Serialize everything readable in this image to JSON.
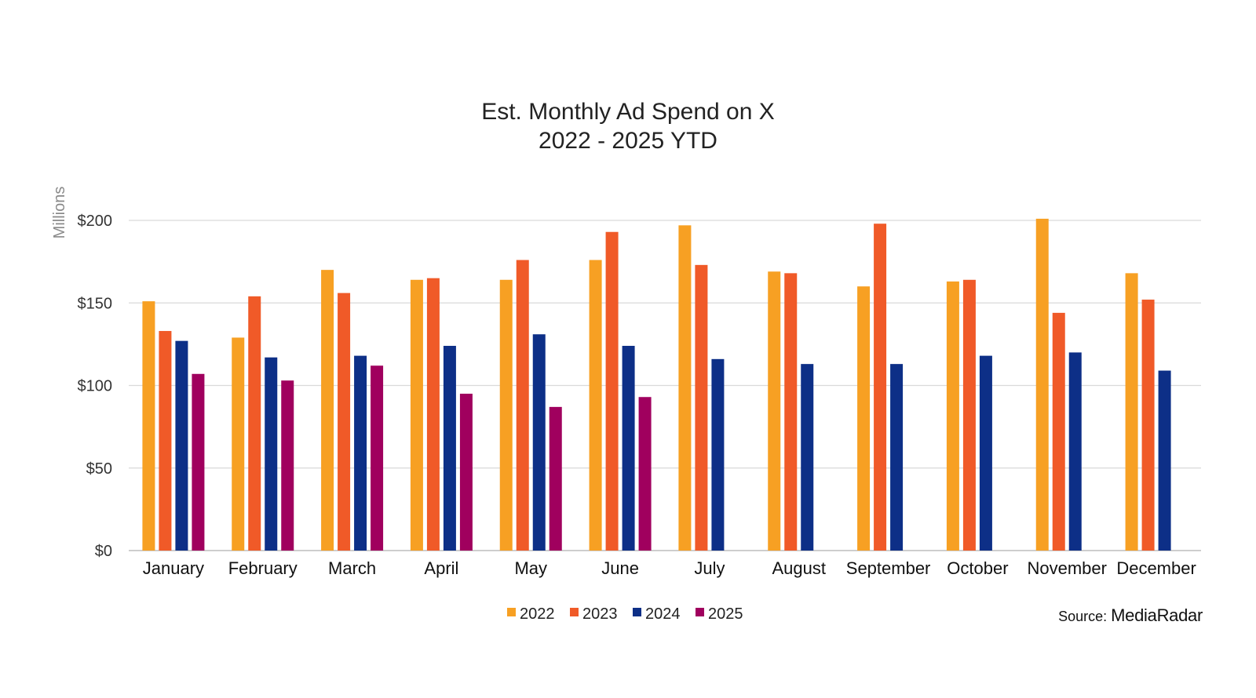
{
  "chart_data": {
    "type": "bar",
    "title": "Est. Monthly Ad Spend on X",
    "subtitle": "2022 - 2025 YTD",
    "ylabel": "Millions",
    "xlabel": "",
    "ylim": [
      0,
      200
    ],
    "yticks": [
      0,
      50,
      100,
      150,
      200
    ],
    "ytick_labels": [
      "$0",
      "$50",
      "$100",
      "$150",
      "$200"
    ],
    "grid": true,
    "legend_position": "bottom",
    "categories": [
      "January",
      "February",
      "March",
      "April",
      "May",
      "June",
      "July",
      "August",
      "September",
      "October",
      "November",
      "December"
    ],
    "series": [
      {
        "name": "2022",
        "color": "#F7A023",
        "values": [
          151,
          129,
          170,
          164,
          164,
          176,
          197,
          169,
          160,
          163,
          201,
          168
        ]
      },
      {
        "name": "2023",
        "color": "#F05A28",
        "values": [
          133,
          154,
          156,
          165,
          176,
          193,
          173,
          168,
          198,
          164,
          144,
          152
        ]
      },
      {
        "name": "2024",
        "color": "#0D2F87",
        "values": [
          127,
          117,
          118,
          124,
          131,
          124,
          116,
          113,
          113,
          118,
          120,
          109
        ]
      },
      {
        "name": "2025",
        "color": "#A0005E",
        "values": [
          107,
          103,
          112,
          95,
          87,
          93,
          null,
          null,
          null,
          null,
          null,
          null
        ]
      }
    ]
  },
  "source": {
    "prefix": "Source: ",
    "brand": "MediaRadar"
  }
}
